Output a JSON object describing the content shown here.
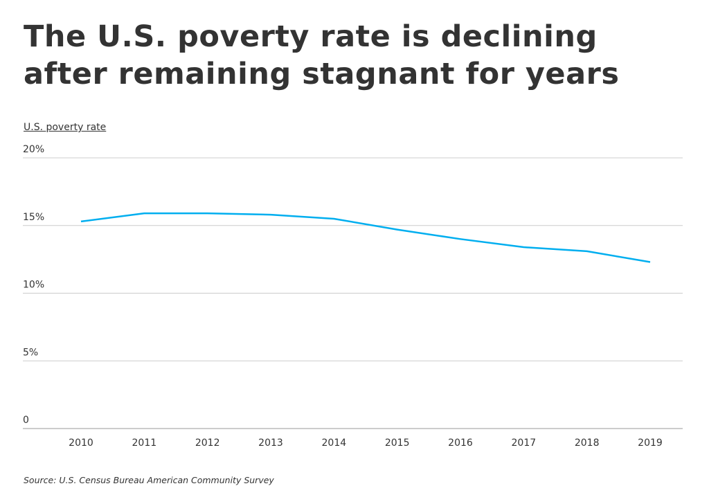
{
  "chart_data": {
    "type": "line",
    "title": "The U.S. poverty rate is declining after remaining stagnant for years",
    "ylabel": "U.S. poverty rate",
    "xlabel": "",
    "x": [
      "2010",
      "2011",
      "2012",
      "2013",
      "2014",
      "2015",
      "2016",
      "2017",
      "2018",
      "2019"
    ],
    "series": [
      {
        "values": [
          15.3,
          15.9,
          15.9,
          15.8,
          15.5,
          14.7,
          14.0,
          13.4,
          13.1,
          12.3
        ],
        "color": "#00aeef"
      }
    ],
    "ylim": [
      0,
      20
    ],
    "yticks": [
      0,
      5,
      10,
      15,
      20
    ],
    "ytick_labels": [
      "0",
      "5%",
      "10%",
      "15%",
      "20%"
    ],
    "grid": true,
    "legend": "none",
    "source": "Source:  U.S. Census Bureau American Community Survey"
  }
}
